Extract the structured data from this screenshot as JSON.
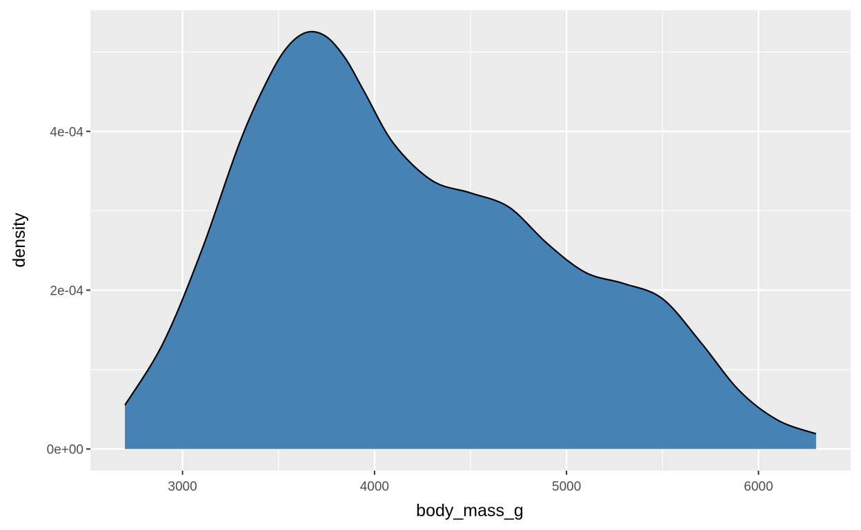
{
  "chart_data": {
    "type": "area",
    "xlabel": "body_mass_g",
    "ylabel": "density",
    "xlim": [
      2520,
      6480
    ],
    "ylim": [
      -2.73e-05,
      0.0005524
    ],
    "x_ticks": [
      {
        "value": 3000,
        "label": "3000"
      },
      {
        "value": 4000,
        "label": "4000"
      },
      {
        "value": 5000,
        "label": "5000"
      },
      {
        "value": 6000,
        "label": "6000"
      }
    ],
    "x_minor": [
      3500,
      4500,
      5500
    ],
    "y_ticks": [
      {
        "value": 0,
        "label": "0e+00"
      },
      {
        "value": 0.0002,
        "label": "2e-04"
      },
      {
        "value": 0.0004,
        "label": "4e-04"
      }
    ],
    "y_minor": [
      0.0001,
      0.0003,
      0.0005
    ],
    "grid": true,
    "series": [
      {
        "x": [
          2700,
          2900,
          3100,
          3300,
          3450,
          3550,
          3650,
          3750,
          3850,
          3950,
          4100,
          4300,
          4500,
          4700,
          4900,
          5100,
          5300,
          5500,
          5700,
          5900,
          6100,
          6300
        ],
        "y": [
          5.52e-05,
          0.0001338,
          0.0002504,
          0.0003874,
          0.0004682,
          0.0005074,
          0.0005249,
          0.0005191,
          0.0004913,
          0.0004485,
          0.0003845,
          0.000338,
          0.0003224,
          0.0003046,
          0.0002586,
          0.0002221,
          0.0002082,
          0.0001892,
          0.0001341,
          7.35e-05,
          3.63e-05,
          1.91e-05
        ]
      }
    ],
    "colors": {
      "panel": "#ebebeb",
      "grid": "#ffffff",
      "fill": "#4682b4",
      "outline": "#000000",
      "tick": "#333333"
    }
  }
}
